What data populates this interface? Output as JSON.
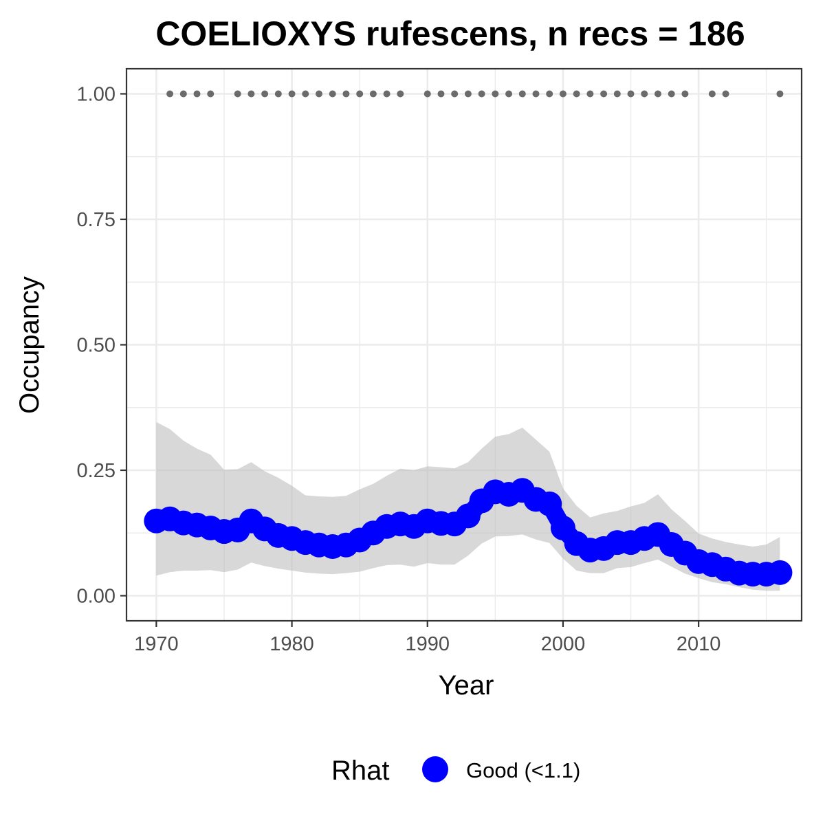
{
  "chart_data": {
    "type": "line",
    "title": "COELIOXYS rufescens, n recs = 186",
    "xlabel": "Year",
    "ylabel": "Occupancy",
    "xlim": [
      1967.8,
      2017.6
    ],
    "ylim": [
      -0.05,
      1.05
    ],
    "x_ticks": [
      1970,
      1980,
      1990,
      2000,
      2010
    ],
    "x_tick_labels": [
      "1970",
      "1980",
      "1990",
      "2000",
      "2010"
    ],
    "y_ticks": [
      0,
      0.25,
      0.5,
      0.75,
      1
    ],
    "y_tick_labels": [
      "0.00",
      "0.25",
      "0.50",
      "0.75",
      "1.00"
    ],
    "grid": true,
    "legend": {
      "title": "Rhat",
      "position": "bottom",
      "entries": [
        {
          "label": "Good (<1.1)",
          "color": "#0000ff"
        }
      ]
    },
    "colors": {
      "mean": "#0000ff",
      "ribbon": "#bebebe",
      "records": "#6b6b6b",
      "grid": "#ebebeb",
      "panel_border": "#333333"
    },
    "years": [
      1970,
      1971,
      1972,
      1973,
      1974,
      1975,
      1976,
      1977,
      1978,
      1979,
      1980,
      1981,
      1982,
      1983,
      1984,
      1985,
      1986,
      1987,
      1988,
      1989,
      1990,
      1991,
      1992,
      1993,
      1994,
      1995,
      1996,
      1997,
      1998,
      1999,
      2000,
      2001,
      2002,
      2003,
      2004,
      2005,
      2006,
      2007,
      2008,
      2009,
      2010,
      2011,
      2012,
      2013,
      2014,
      2015,
      2016
    ],
    "series": [
      {
        "name": "mean",
        "values": [
          0.149,
          0.153,
          0.145,
          0.141,
          0.135,
          0.128,
          0.131,
          0.149,
          0.133,
          0.12,
          0.114,
          0.106,
          0.101,
          0.098,
          0.101,
          0.111,
          0.125,
          0.138,
          0.143,
          0.138,
          0.149,
          0.144,
          0.143,
          0.159,
          0.189,
          0.207,
          0.202,
          0.21,
          0.192,
          0.183,
          0.135,
          0.104,
          0.091,
          0.094,
          0.106,
          0.106,
          0.114,
          0.122,
          0.102,
          0.085,
          0.068,
          0.062,
          0.053,
          0.045,
          0.043,
          0.043,
          0.046
        ]
      },
      {
        "name": "lower",
        "values": [
          0.04,
          0.047,
          0.05,
          0.05,
          0.051,
          0.047,
          0.052,
          0.066,
          0.059,
          0.054,
          0.05,
          0.046,
          0.044,
          0.043,
          0.045,
          0.048,
          0.055,
          0.061,
          0.062,
          0.058,
          0.065,
          0.062,
          0.062,
          0.08,
          0.104,
          0.118,
          0.119,
          0.122,
          0.112,
          0.105,
          0.074,
          0.05,
          0.045,
          0.045,
          0.055,
          0.057,
          0.065,
          0.072,
          0.058,
          0.044,
          0.035,
          0.027,
          0.023,
          0.017,
          0.012,
          0.01,
          0.01
        ]
      },
      {
        "name": "upper",
        "values": [
          0.346,
          0.332,
          0.309,
          0.293,
          0.281,
          0.251,
          0.252,
          0.266,
          0.248,
          0.235,
          0.219,
          0.2,
          0.198,
          0.197,
          0.199,
          0.212,
          0.223,
          0.239,
          0.253,
          0.25,
          0.258,
          0.256,
          0.254,
          0.266,
          0.293,
          0.317,
          0.322,
          0.335,
          0.311,
          0.287,
          0.214,
          0.179,
          0.156,
          0.164,
          0.169,
          0.178,
          0.185,
          0.202,
          0.172,
          0.149,
          0.124,
          0.114,
          0.107,
          0.102,
          0.098,
          0.102,
          0.117
        ]
      }
    ],
    "records_y": 1.0,
    "record_years": [
      1971,
      1972,
      1973,
      1974,
      1976,
      1977,
      1978,
      1979,
      1980,
      1981,
      1982,
      1983,
      1984,
      1985,
      1986,
      1987,
      1988,
      1990,
      1991,
      1992,
      1993,
      1994,
      1995,
      1996,
      1997,
      1998,
      1999,
      2000,
      2001,
      2002,
      2003,
      2004,
      2005,
      2006,
      2007,
      2008,
      2009,
      2011,
      2012,
      2016
    ]
  }
}
